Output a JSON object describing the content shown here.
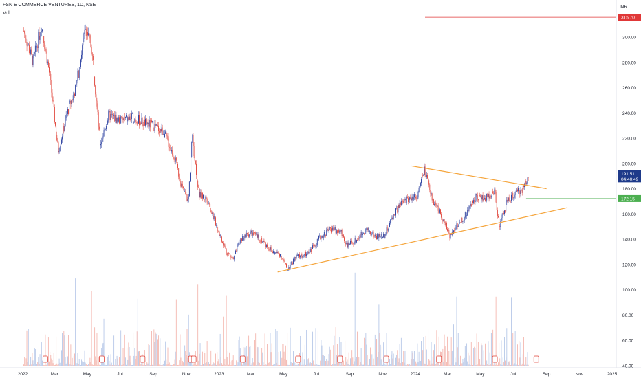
{
  "header": {
    "symbol_title": "FSN E COMMERCE VENTURES, 1D, NSE",
    "vol_label": "Vol"
  },
  "currency": "INR",
  "colors": {
    "up": "#2a3f9f",
    "down": "#e0443a",
    "trendline": "#f5a43a",
    "red_level": "#e03838",
    "green_level": "#4caf50",
    "vol_up": "#b7c8e8",
    "vol_down": "#f4b8b0",
    "last_price_bg": "#1e3a8a"
  },
  "chart_data": {
    "type": "candlestick",
    "title": "FSN E COMMERCE VENTURES, 1D, NSE",
    "y_ticks": [
      "300.00",
      "280.00",
      "260.00",
      "240.00",
      "220.00",
      "200.00",
      "180.00",
      "160.00",
      "140.00",
      "120.00",
      "100.00",
      "80.00",
      "60.00",
      "40.00"
    ],
    "x_ticks": [
      "2022",
      "Mar",
      "May",
      "Jul",
      "Sep",
      "Nov",
      "2023",
      "Mar",
      "May",
      "Jul",
      "Sep",
      "Nov",
      "2024",
      "Mar",
      "May",
      "Jul",
      "Sep",
      "Nov",
      "2025"
    ],
    "ylim": [
      40,
      320
    ],
    "price_path": [
      [
        "2022-01-03",
        305
      ],
      [
        "2022-01-20",
        280
      ],
      [
        "2022-02-05",
        310
      ],
      [
        "2022-02-20",
        270
      ],
      [
        "2022-03-08",
        210
      ],
      [
        "2022-03-25",
        240
      ],
      [
        "2022-04-10",
        260
      ],
      [
        "2022-04-28",
        308
      ],
      [
        "2022-05-10",
        290
      ],
      [
        "2022-05-25",
        215
      ],
      [
        "2022-06-10",
        238
      ],
      [
        "2022-07-01",
        234
      ],
      [
        "2022-07-25",
        236
      ],
      [
        "2022-08-15",
        232
      ],
      [
        "2022-09-01",
        230
      ],
      [
        "2022-09-20",
        225
      ],
      [
        "2022-10-10",
        205
      ],
      [
        "2022-10-25",
        180
      ],
      [
        "2022-11-05",
        170
      ],
      [
        "2022-11-12",
        222
      ],
      [
        "2022-11-25",
        175
      ],
      [
        "2022-12-10",
        172
      ],
      [
        "2022-12-28",
        150
      ],
      [
        "2023-01-15",
        130
      ],
      [
        "2023-01-28",
        124
      ],
      [
        "2023-02-10",
        140
      ],
      [
        "2023-03-01",
        145
      ],
      [
        "2023-03-20",
        140
      ],
      [
        "2023-04-10",
        130
      ],
      [
        "2023-04-25",
        128
      ],
      [
        "2023-05-08",
        116
      ],
      [
        "2023-05-25",
        126
      ],
      [
        "2023-06-15",
        128
      ],
      [
        "2023-07-05",
        140
      ],
      [
        "2023-07-25",
        148
      ],
      [
        "2023-08-15",
        146
      ],
      [
        "2023-08-28",
        135
      ],
      [
        "2023-09-15",
        140
      ],
      [
        "2023-10-01",
        148
      ],
      [
        "2023-10-20",
        142
      ],
      [
        "2023-11-05",
        143
      ],
      [
        "2023-11-20",
        158
      ],
      [
        "2023-12-05",
        168
      ],
      [
        "2023-12-20",
        172
      ],
      [
        "2024-01-05",
        175
      ],
      [
        "2024-01-18",
        195
      ],
      [
        "2024-02-01",
        172
      ],
      [
        "2024-02-15",
        162
      ],
      [
        "2024-03-05",
        143
      ],
      [
        "2024-03-20",
        152
      ],
      [
        "2024-04-05",
        160
      ],
      [
        "2024-04-22",
        174
      ],
      [
        "2024-05-10",
        172
      ],
      [
        "2024-05-28",
        178
      ],
      [
        "2024-06-05",
        150
      ],
      [
        "2024-06-20",
        170
      ],
      [
        "2024-07-05",
        176
      ],
      [
        "2024-07-20",
        180
      ],
      [
        "2024-07-30",
        191.51
      ]
    ],
    "upper_trendline": [
      [
        "2023-12-25",
        198
      ],
      [
        "2024-09-01",
        180
      ]
    ],
    "lower_trendline": [
      [
        "2023-04-20",
        114
      ],
      [
        "2024-10-10",
        165
      ]
    ],
    "resistance_level": 315.7,
    "support_level": 172.15,
    "last_price": "191.51",
    "countdown": "04:40:49",
    "resistance_label": "315.70",
    "support_label": "172.15"
  }
}
